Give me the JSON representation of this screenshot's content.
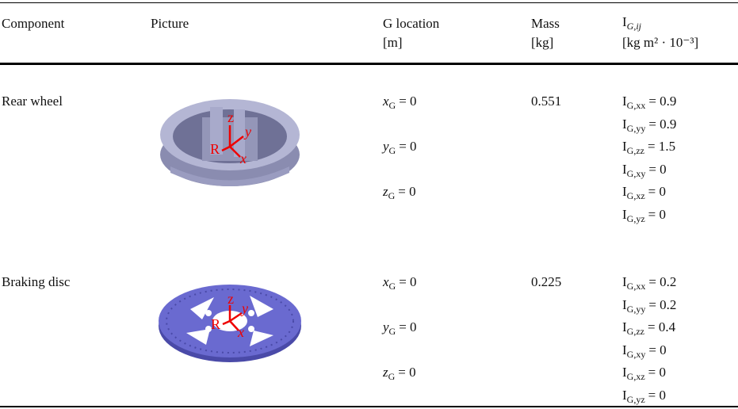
{
  "table": {
    "header": {
      "component": "Component",
      "picture": "Picture",
      "location": [
        "G location",
        "[m]"
      ],
      "mass": [
        "Mass",
        "[kg]"
      ],
      "inertia": {
        "base": "I",
        "sub": "G,ij",
        "unit": "[kg m² · 10⁻³]"
      }
    },
    "rows": [
      {
        "component": "Rear wheel",
        "axes": [
          "z",
          "y",
          "R",
          "x"
        ],
        "location": [
          {
            "base": "x",
            "sub": "G",
            "rest": "= 0"
          },
          {
            "base": "y",
            "sub": "G",
            "rest": "= 0"
          },
          {
            "base": "z",
            "sub": "G",
            "rest": "= 0"
          }
        ],
        "mass": "0.551",
        "inertia": [
          {
            "base": "I",
            "sub": "G,xx",
            "rest": "= 0.9"
          },
          {
            "base": "I",
            "sub": "G,yy",
            "rest": "= 0.9"
          },
          {
            "base": "I",
            "sub": "G,zz",
            "rest": "= 1.5"
          },
          {
            "base": "I",
            "sub": "G,xy",
            "rest": "= 0"
          },
          {
            "base": "I",
            "sub": "G,xz",
            "rest": "= 0"
          },
          {
            "base": "I",
            "sub": "G,yz",
            "rest": "= 0"
          }
        ]
      },
      {
        "component": "Braking disc",
        "axes": [
          "z",
          "y",
          "R",
          "x"
        ],
        "location": [
          {
            "base": "x",
            "sub": "G",
            "rest": "= 0"
          },
          {
            "base": "y",
            "sub": "G",
            "rest": "= 0"
          },
          {
            "base": "z",
            "sub": "G",
            "rest": "= 0"
          }
        ],
        "mass": "0.225",
        "inertia": [
          {
            "base": "I",
            "sub": "G,xx",
            "rest": "= 0.2"
          },
          {
            "base": "I",
            "sub": "G,yy",
            "rest": "= 0.2"
          },
          {
            "base": "I",
            "sub": "G,zz",
            "rest": "= 0.4"
          },
          {
            "base": "I",
            "sub": "G,xy",
            "rest": "= 0"
          },
          {
            "base": "I",
            "sub": "G,xz",
            "rest": "= 0"
          },
          {
            "base": "I",
            "sub": "G,yz",
            "rest": "= 0"
          }
        ]
      }
    ]
  }
}
